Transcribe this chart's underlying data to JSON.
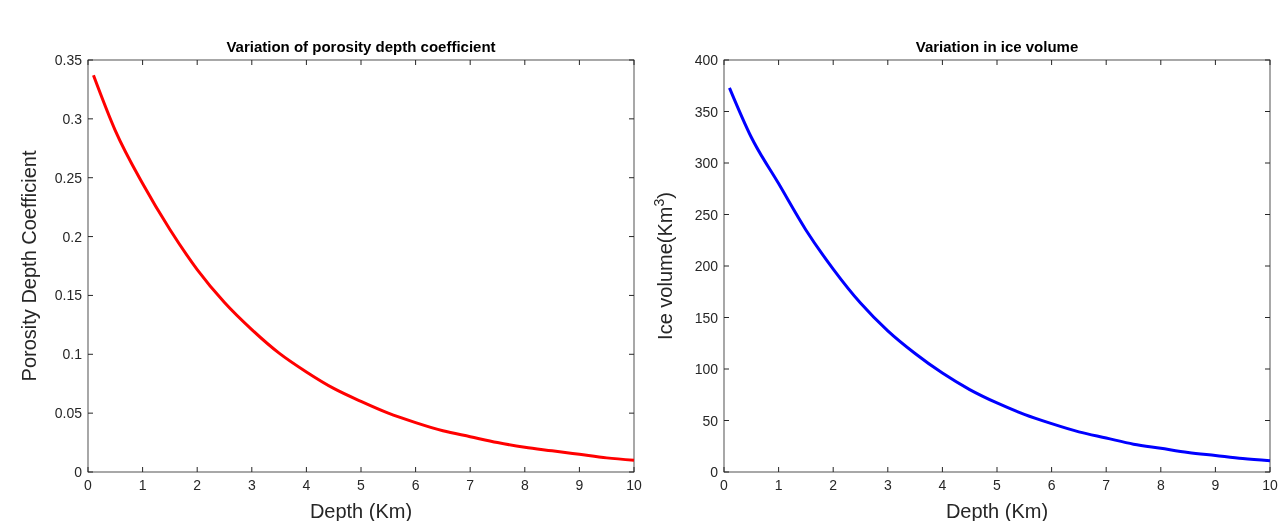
{
  "chart_data": [
    {
      "type": "line",
      "title": "Variation of porosity depth coefficient",
      "xlabel": "Depth (Km)",
      "ylabel": "Porosity Depth Coefficient",
      "x": [
        0.1,
        0.5,
        1,
        1.5,
        2,
        2.5,
        3,
        3.5,
        4,
        4.5,
        5,
        5.5,
        6,
        6.5,
        7,
        7.5,
        8,
        8.5,
        9,
        9.5,
        10
      ],
      "series": [
        {
          "color": "#ff0000",
          "values": [
            0.337,
            0.29,
            0.245,
            0.206,
            0.172,
            0.144,
            0.121,
            0.101,
            0.085,
            0.071,
            0.06,
            0.05,
            0.042,
            0.035,
            0.03,
            0.025,
            0.021,
            0.018,
            0.015,
            0.012,
            0.01
          ]
        }
      ],
      "xlim": [
        0,
        10
      ],
      "xticks": [
        0,
        1,
        2,
        3,
        4,
        5,
        6,
        7,
        8,
        9,
        10
      ],
      "ylim": [
        0,
        0.35
      ],
      "yticks": [
        0,
        0.05,
        0.1,
        0.15,
        0.2,
        0.25,
        0.3,
        0.35
      ],
      "grid": false
    },
    {
      "type": "line",
      "title": "Variation in ice volume",
      "xlabel": "Depth (Km)",
      "ylabel": "Ice volume(Km$^{3}$)",
      "x": [
        0.1,
        0.5,
        1,
        1.5,
        2,
        2.5,
        3,
        3.5,
        4,
        4.5,
        5,
        5.5,
        6,
        6.5,
        7,
        7.5,
        8,
        8.5,
        9,
        9.5,
        10
      ],
      "series": [
        {
          "color": "#0000ff",
          "values": [
            373,
            325,
            280,
            235,
            197,
            164,
            137,
            115,
            96,
            80,
            67,
            56,
            47,
            39,
            33,
            27,
            23,
            19,
            16,
            13,
            11
          ]
        }
      ],
      "xlim": [
        0,
        10
      ],
      "xticks": [
        0,
        1,
        2,
        3,
        4,
        5,
        6,
        7,
        8,
        9,
        10
      ],
      "ylim": [
        0,
        400
      ],
      "yticks": [
        0,
        50,
        100,
        150,
        200,
        250,
        300,
        350,
        400
      ],
      "grid": false
    }
  ]
}
